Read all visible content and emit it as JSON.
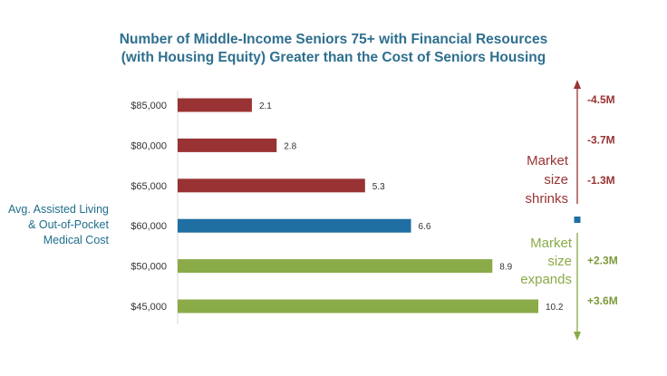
{
  "chart_data": {
    "type": "bar",
    "orientation": "horizontal",
    "title_lines": [
      "Number of Middle-Income Seniors 75+ with Financial Resources",
      "(with Housing Equity) Greater than the Cost of Seniors Housing"
    ],
    "categories": [
      "$85,000",
      "$80,000",
      "$65,000",
      "$60,000",
      "$50,000",
      "$45,000"
    ],
    "values": [
      2.1,
      2.8,
      5.3,
      6.6,
      8.9,
      10.2
    ],
    "value_labels": [
      "2.1",
      "2.8",
      "5.3",
      "6.6",
      "8.9",
      "10.2"
    ],
    "bar_colors": [
      "#993333",
      "#993333",
      "#993333",
      "#1f6fa3",
      "#8aab48",
      "#8aab48"
    ],
    "xlim": [
      0,
      11
    ],
    "grid": false,
    "reference_label": [
      "Avg. Assisted Living",
      "& Out-of-Pocket",
      "Medical Cost"
    ],
    "reference_category": "$60,000",
    "deltas": [
      {
        "category": "$85,000",
        "label": "-4.5M",
        "color": "#993333"
      },
      {
        "category": "$80,000",
        "label": "-3.7M",
        "color": "#993333"
      },
      {
        "category": "$65,000",
        "label": "-1.3M",
        "color": "#993333"
      },
      {
        "category": "$50,000",
        "label": "+2.3M",
        "color": "#7a9a3a"
      },
      {
        "category": "$45,000",
        "label": "+3.6M",
        "color": "#7a9a3a"
      }
    ],
    "annotations": {
      "shrinks": {
        "lines": [
          "Market",
          "size",
          "shrinks"
        ],
        "color": "#993333"
      },
      "expands": {
        "lines": [
          "Market",
          "size",
          "expands"
        ],
        "color": "#8aab48"
      }
    },
    "colors": {
      "decrease": "#993333",
      "reference": "#1f6fa3",
      "increase": "#8aab48",
      "title": "#2e6f8e"
    }
  }
}
